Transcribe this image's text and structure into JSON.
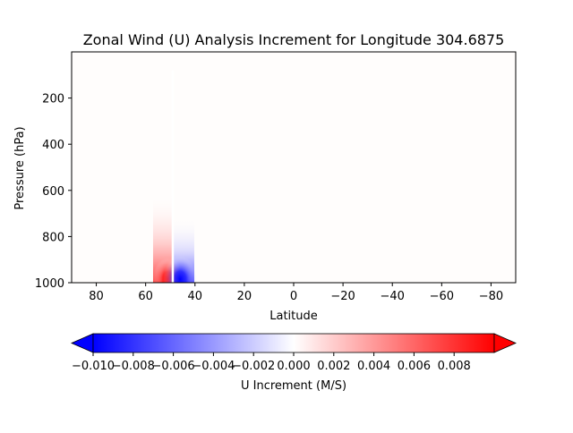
{
  "chart_data": [
    {
      "type": "heatmap",
      "title": "Zonal Wind (U) Analysis Increment for Longitude 304.6875",
      "xlabel": "Latitude",
      "ylabel": "Pressure (hPa)",
      "x_reversed": true,
      "y_reversed": true,
      "xlim": [
        90,
        -90
      ],
      "ylim": [
        1000,
        0
      ],
      "x_ticks": [
        80,
        60,
        40,
        20,
        0,
        -20,
        -40,
        -60,
        -80
      ],
      "x_tick_labels": [
        "80",
        "60",
        "40",
        "20",
        "0",
        "−20",
        "−40",
        "−60",
        "−80"
      ],
      "y_ticks": [
        200,
        400,
        600,
        800,
        1000
      ],
      "y_tick_labels": [
        "200",
        "400",
        "600",
        "800",
        "1000"
      ],
      "grid": false,
      "features": [
        {
          "name": "positive maximum",
          "lat_center": 51,
          "p_center": 985,
          "value": 0.0095
        },
        {
          "name": "negative minimum",
          "lat_center": 46,
          "p_center": 985,
          "value": -0.0095
        }
      ],
      "zero_line_lat": 49,
      "zero_line_p_range": [
        80,
        1000
      ]
    },
    {
      "type": "colorbar",
      "label": "U Increment (M/S)",
      "vmin": -0.01,
      "vmax": 0.01,
      "extend": "both",
      "ticks": [
        -0.01,
        -0.008,
        -0.006,
        -0.004,
        -0.002,
        0.0,
        0.002,
        0.004,
        0.006,
        0.008
      ],
      "tick_labels": [
        "−0.010",
        "−0.008",
        "−0.006",
        "−0.004",
        "−0.002",
        "0.000",
        "0.002",
        "0.004",
        "0.006",
        "0.008"
      ],
      "colormap": "bwr",
      "colors": {
        "low": "#0000ff",
        "mid": "#ffffff",
        "high": "#ff0000"
      }
    }
  ]
}
